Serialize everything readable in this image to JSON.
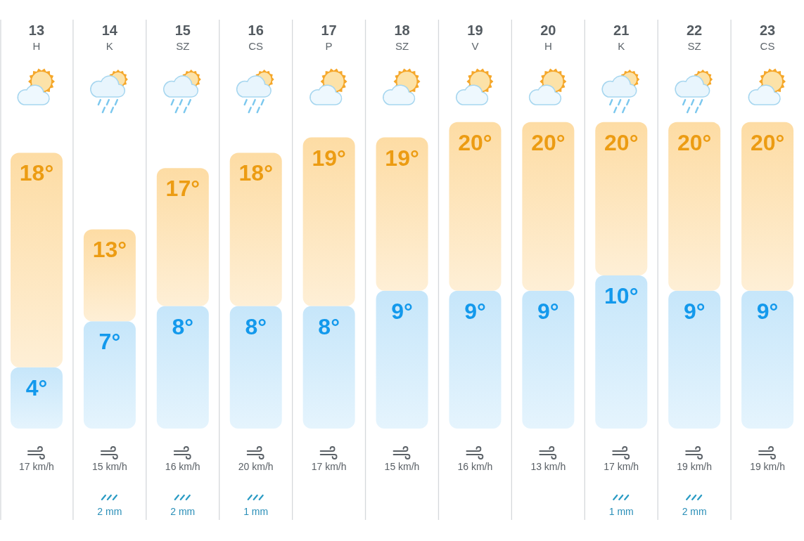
{
  "chart_data": {
    "type": "bar",
    "stacked": true,
    "categories": [
      "13\nH",
      "14\nK",
      "15\nSZ",
      "16\nCS",
      "17\nP",
      "18\nSZ",
      "19\nV",
      "20\nH",
      "21\nK",
      "22\nSZ",
      "23\nCS"
    ],
    "series": [
      {
        "color": "#c6e6fa",
        "values": [
          4,
          7,
          8,
          8,
          8,
          9,
          9,
          9,
          10,
          9,
          9
        ],
        "value_labels": [
          "4°",
          "7°",
          "8°",
          "8°",
          "8°",
          "9°",
          "9°",
          "9°",
          "10°",
          "9°",
          "9°"
        ]
      },
      {
        "color": "#fddca4",
        "values": [
          14,
          6,
          9,
          10,
          11,
          10,
          11,
          11,
          10,
          11,
          11
        ]
      }
    ],
    "totals": [
      "18°",
      "13°",
      "17°",
      "18°",
      "19°",
      "19°",
      "20°",
      "20°",
      "20°",
      "20°",
      "20°"
    ],
    "tick_labels": "x",
    "grid": "x",
    "annotations": [
      "17 km/h",
      "15 km/h",
      "16 km/h",
      "20 km/h",
      "17 km/h",
      "15 km/h",
      "16 km/h",
      "13 km/h",
      "17 km/h",
      "19 km/h",
      "19 km/h",
      "2 mm",
      "2 mm",
      "1 mm",
      "1 mm",
      "2 mm"
    ]
  }
}
